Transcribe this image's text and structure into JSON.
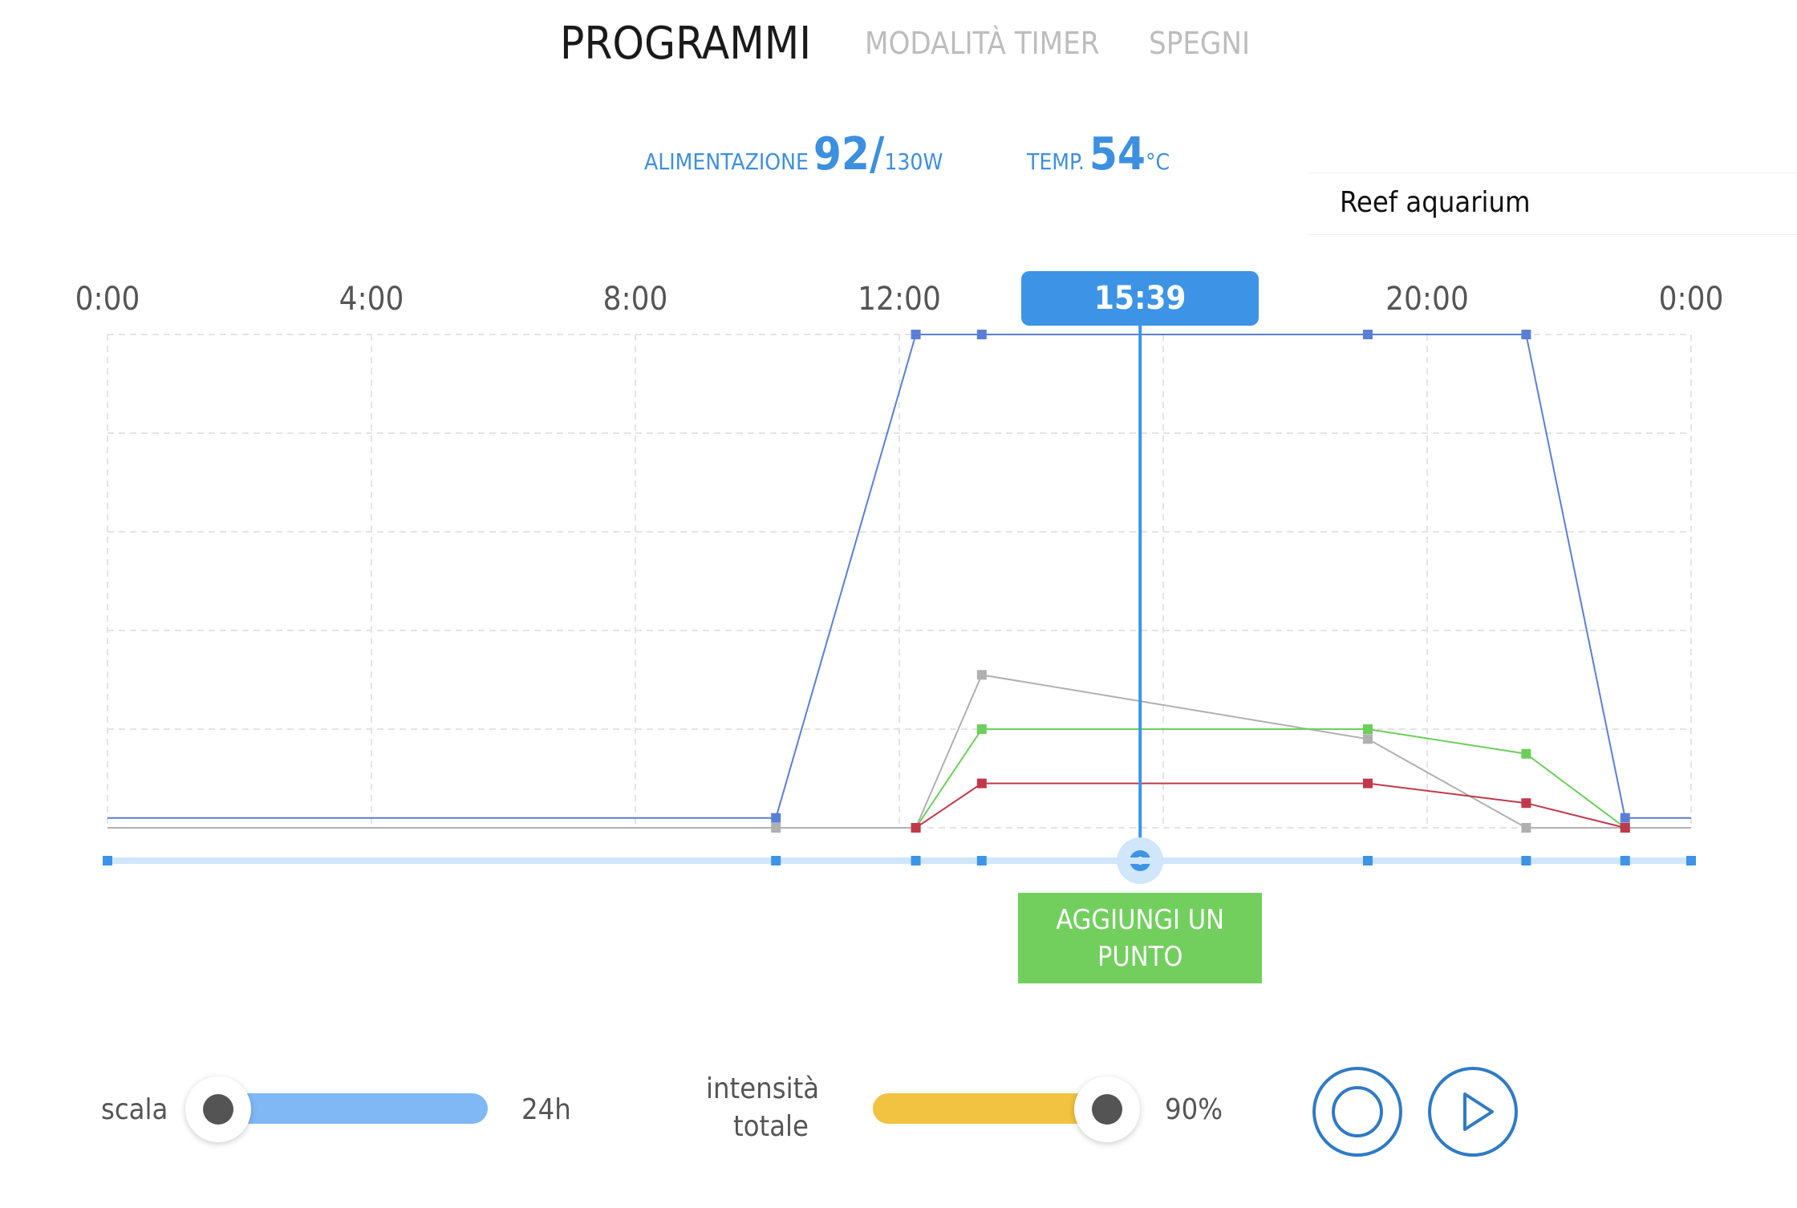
{
  "tabs": [
    {
      "label": "PROGRAMMI",
      "active": true
    },
    {
      "label": "MODALITÀ TIMER",
      "active": false
    },
    {
      "label": "SPEGNI",
      "active": false
    }
  ],
  "stats": {
    "power_label": "ALIMENTAZIONE",
    "power_value": "92/",
    "power_max": "130W",
    "temp_label": "TEMP.",
    "temp_value": "54",
    "temp_unit": "°C"
  },
  "profile": {
    "name": "Reef aquarium"
  },
  "timeline": {
    "axis_labels": [
      "0:00",
      "4:00",
      "8:00",
      "12:00",
      "20:00",
      "0:00"
    ],
    "current_time": "15:39"
  },
  "chart_data": {
    "type": "line",
    "x_unit": "hours",
    "xlim": [
      0,
      24
    ],
    "ylim": [
      0,
      100
    ],
    "current_time_hours": 15.65,
    "series": [
      {
        "color": "#5b7fd6",
        "points": [
          [
            0,
            2
          ],
          [
            10.13,
            2
          ],
          [
            12.25,
            100
          ],
          [
            13.25,
            100
          ],
          [
            19.1,
            100
          ],
          [
            21.5,
            100
          ],
          [
            23,
            2
          ],
          [
            24,
            2
          ]
        ]
      },
      {
        "color": "#b0b0b0",
        "points": [
          [
            0,
            0
          ],
          [
            10.13,
            0
          ],
          [
            12.25,
            0
          ],
          [
            13.25,
            31
          ],
          [
            19.1,
            18
          ],
          [
            21.5,
            0
          ],
          [
            23,
            0
          ],
          [
            24,
            0
          ]
        ]
      },
      {
        "color": "#6ccf5b",
        "points": [
          [
            12.25,
            0
          ],
          [
            13.25,
            20
          ],
          [
            19.1,
            20
          ],
          [
            21.5,
            15
          ],
          [
            23,
            0
          ]
        ]
      },
      {
        "color": "#c0394b",
        "points": [
          [
            12.25,
            0
          ],
          [
            13.25,
            9
          ],
          [
            19.1,
            9
          ],
          [
            21.5,
            5
          ],
          [
            23,
            0
          ]
        ]
      }
    ],
    "timeline_points": [
      0,
      10.13,
      12.25,
      13.25,
      19.1,
      21.5,
      23,
      24
    ]
  },
  "add_point_label": "AGGIUNGI UN PUNTO",
  "controls": {
    "scale_label": "scala",
    "scale_value": "24h",
    "scale_fraction": 0.0,
    "intensity_label_1": "intensità",
    "intensity_label_2": "totale",
    "intensity_value": "90%",
    "intensity_fraction": 0.9,
    "colors": {
      "scale_track": "#7fb8f5",
      "intensity_track": "#f2c241",
      "accent": "#3d94e6",
      "add_button": "#72cf5e"
    }
  },
  "icons": {
    "record": "record-icon",
    "play": "play-icon"
  }
}
